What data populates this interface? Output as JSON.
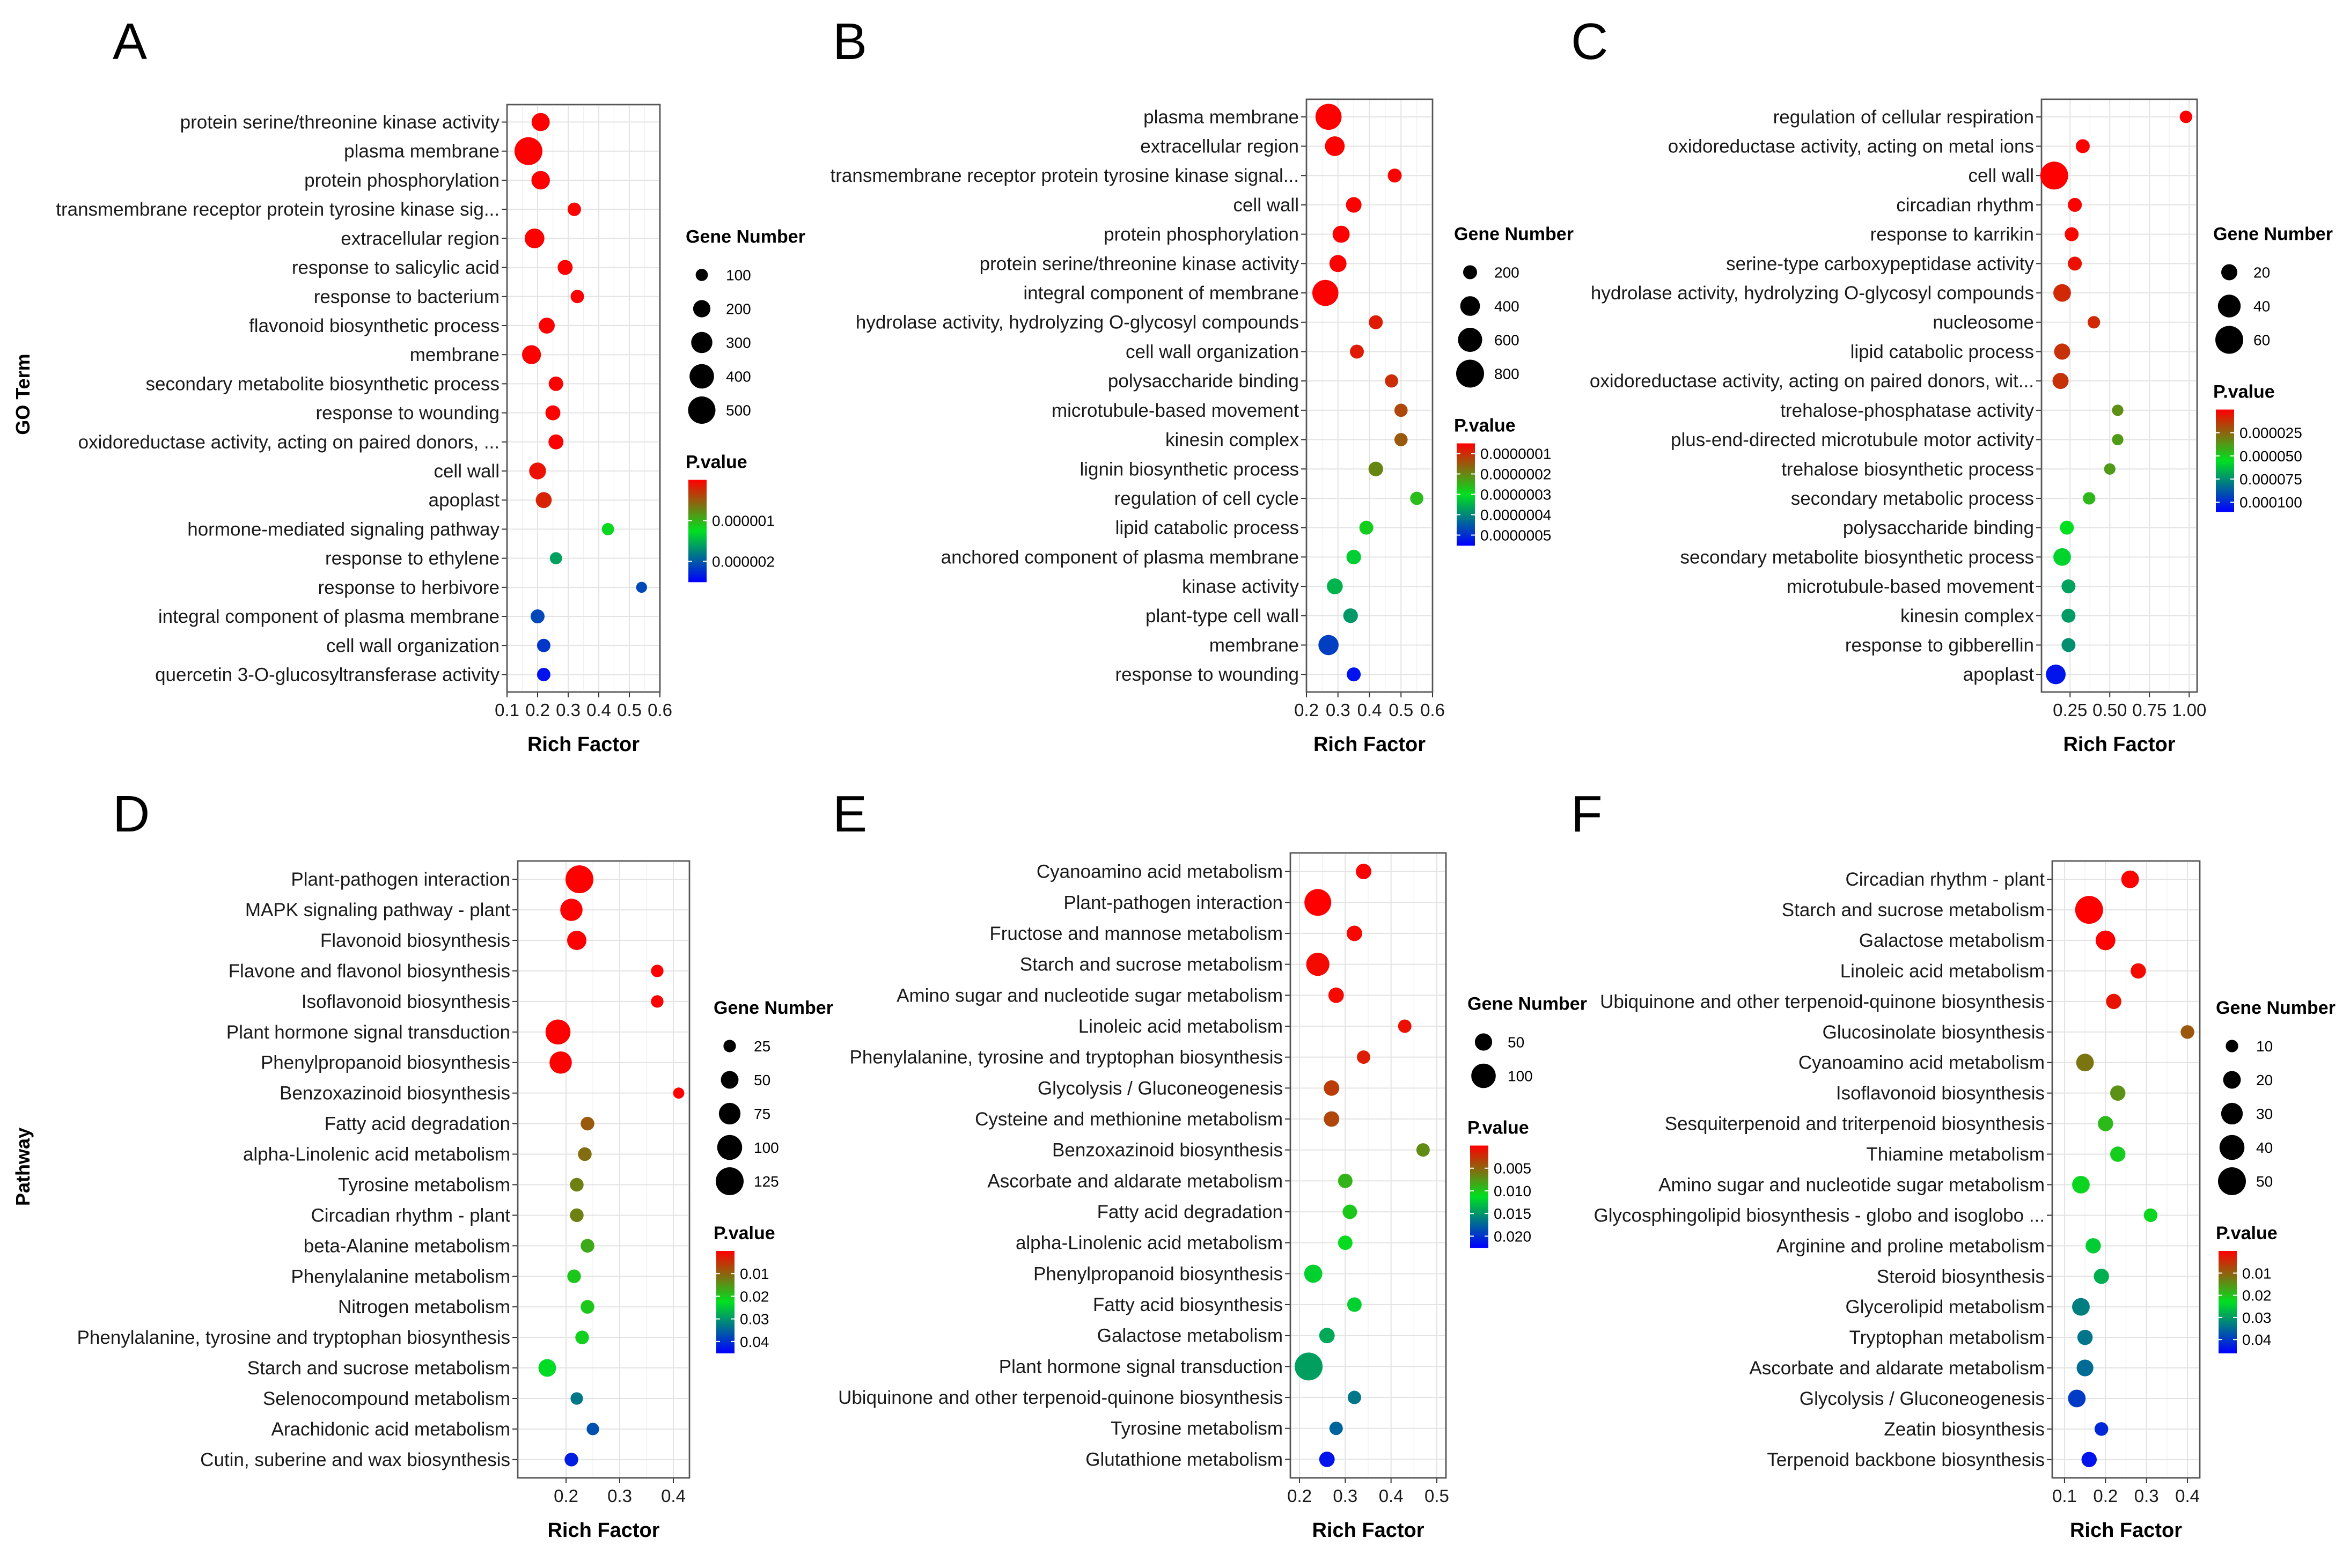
{
  "colors": {
    "pvalue_gradient": [
      "#FF0000",
      "#00E020",
      "#0000FF"
    ]
  },
  "chart_data": [
    {
      "panel": "A",
      "type": "scatter",
      "row_label": "GO Term",
      "xlabel": "Rich Factor",
      "xlim": [
        0.1,
        0.6
      ],
      "xticks": [
        0.1,
        0.2,
        0.3,
        0.4,
        0.5,
        0.6
      ],
      "size_legend": {
        "title": "Gene Number",
        "values": [
          100,
          200,
          300,
          400,
          500
        ]
      },
      "color_legend": {
        "title": "P.value",
        "labels": [
          "0.000001",
          "0.000002"
        ],
        "ticks": [
          1e-06,
          2e-06
        ],
        "range": [
          0,
          2.5e-06
        ]
      },
      "terms": [
        "protein serine/threonine kinase activity",
        "plasma membrane",
        "protein phosphorylation",
        "transmembrane receptor protein tyrosine kinase sig...",
        "extracellular region",
        "response to salicylic acid",
        "response to bacterium",
        "flavonoid biosynthetic process",
        "membrane",
        "secondary metabolite biosynthetic process",
        "response to wounding",
        "oxidoreductase activity, acting on paired donors, ...",
        "cell wall",
        "apoplast",
        "hormone-mediated signaling pathway",
        "response to ethylene",
        "response to herbivore",
        "integral component of plasma membrane",
        "cell wall organization",
        "quercetin 3-O-glucosyltransferase activity"
      ],
      "rich_factor": [
        0.21,
        0.17,
        0.21,
        0.32,
        0.19,
        0.29,
        0.33,
        0.23,
        0.18,
        0.26,
        0.25,
        0.26,
        0.2,
        0.22,
        0.43,
        0.26,
        0.54,
        0.2,
        0.22,
        0.22
      ],
      "gene_number": [
        220,
        520,
        230,
        120,
        260,
        150,
        120,
        170,
        240,
        140,
        150,
        150,
        190,
        170,
        100,
        100,
        80,
        130,
        120,
        120
      ],
      "p_value": [
        0.0,
        0.0,
        0.0,
        0.0,
        0.0,
        0.0,
        0.0,
        0.0,
        0.0,
        0.0,
        0.0,
        0.0,
        1e-07,
        2e-07,
        1.2e-06,
        1.6e-06,
        2.1e-06,
        2.1e-06,
        2.2e-06,
        2.4e-06
      ]
    },
    {
      "panel": "B",
      "type": "scatter",
      "row_label": "",
      "xlabel": "Rich Factor",
      "xlim": [
        0.2,
        0.6
      ],
      "xticks": [
        0.2,
        0.3,
        0.4,
        0.5,
        0.6
      ],
      "size_legend": {
        "title": "Gene Number",
        "values": [
          200,
          400,
          600,
          800
        ]
      },
      "color_legend": {
        "title": "P.value",
        "labels": [
          "0.0000001",
          "0.0000002",
          "0.0000003",
          "0.0000004",
          "0.0000005"
        ],
        "ticks": [
          1e-07,
          2e-07,
          3e-07,
          4e-07,
          5e-07
        ],
        "range": [
          5e-08,
          5.5e-07
        ]
      },
      "terms": [
        "plasma membrane",
        "extracellular region",
        "transmembrane receptor protein tyrosine kinase signal...",
        "cell wall",
        "protein phosphorylation",
        "protein serine/threonine kinase activity",
        "integral component of membrane",
        "hydrolase activity, hydrolyzing O-glycosyl compounds",
        "cell wall organization",
        "polysaccharide binding",
        "microtubule-based movement",
        "kinesin complex",
        "lignin biosynthetic process",
        "regulation of cell cycle",
        "lipid catabolic process",
        "anchored component of plasma membrane",
        "kinase activity",
        "plant-type cell wall",
        "membrane",
        "response to wounding"
      ],
      "rich_factor": [
        0.27,
        0.29,
        0.48,
        0.35,
        0.31,
        0.3,
        0.26,
        0.42,
        0.36,
        0.47,
        0.5,
        0.5,
        0.42,
        0.55,
        0.39,
        0.35,
        0.29,
        0.34,
        0.27,
        0.35
      ],
      "gene_number": [
        700,
        400,
        200,
        250,
        300,
        300,
        700,
        200,
        200,
        180,
        180,
        180,
        220,
        180,
        200,
        220,
        260,
        220,
        420,
        200
      ],
      "p_value": [
        5e-08,
        5e-08,
        5e-08,
        5e-08,
        5e-08,
        5e-08,
        5e-08,
        8e-08,
        8e-08,
        1e-07,
        1.3e-07,
        1.5e-07,
        2e-07,
        2.6e-07,
        2.8e-07,
        3.2e-07,
        3.5e-07,
        3.8e-07,
        4.8e-07,
        5.3e-07
      ]
    },
    {
      "panel": "C",
      "type": "scatter",
      "row_label": "",
      "xlabel": "Rich Factor",
      "xlim": [
        0.07,
        1.05
      ],
      "xticks": [
        0.25,
        0.5,
        0.75,
        1.0
      ],
      "xtick_labels": [
        "0.25",
        "0.50",
        "0.75",
        "1.00"
      ],
      "size_legend": {
        "title": "Gene Number",
        "values": [
          20,
          40,
          60
        ]
      },
      "color_legend": {
        "title": "P.value",
        "labels": [
          "0.000025",
          "0.000050",
          "0.000075",
          "0.000100"
        ],
        "ticks": [
          2.5e-05,
          5e-05,
          7.5e-05,
          0.0001
        ],
        "range": [
          0,
          0.00011
        ]
      },
      "terms": [
        "regulation of cellular respiration",
        "oxidoreductase activity, acting on metal ions",
        "cell wall",
        "circadian rhythm",
        "response to karrikin",
        "serine-type carboxypeptidase activity",
        "hydrolase activity, hydrolyzing O-glycosyl compounds",
        "nucleosome",
        "lipid catabolic process",
        "oxidoreductase activity, acting on paired donors, wit...",
        "trehalose-phosphatase activity",
        "plus-end-directed microtubule motor activity",
        "trehalose biosynthetic process",
        "secondary metabolic process",
        "polysaccharide binding",
        "secondary metabolite biosynthetic process",
        "microtubule-based movement",
        "kinesin complex",
        "response to gibberellin",
        "apoplast"
      ],
      "rich_factor": [
        0.98,
        0.33,
        0.15,
        0.28,
        0.26,
        0.28,
        0.2,
        0.4,
        0.2,
        0.19,
        0.55,
        0.55,
        0.5,
        0.37,
        0.23,
        0.2,
        0.24,
        0.24,
        0.24,
        0.16
      ],
      "gene_number": [
        12,
        15,
        60,
        15,
        15,
        15,
        24,
        12,
        20,
        20,
        10,
        10,
        10,
        12,
        15,
        24,
        15,
        15,
        15,
        30
      ],
      "p_value": [
        0.0,
        0.0,
        0.0,
        0.0,
        2e-06,
        4e-06,
        1e-05,
        1e-05,
        1.2e-05,
        1.2e-05,
        3.5e-05,
        3.8e-05,
        3.8e-05,
        4.5e-05,
        5.5e-05,
        5.8e-05,
        7e-05,
        7.2e-05,
        7.5e-05,
        0.000105
      ]
    },
    {
      "panel": "D",
      "type": "scatter",
      "row_label": "Pathway",
      "xlabel": "Rich Factor",
      "xlim": [
        0.11,
        0.43
      ],
      "xticks": [
        0.2,
        0.3,
        0.4
      ],
      "size_legend": {
        "title": "Gene Number",
        "values": [
          25,
          50,
          75,
          100,
          125
        ]
      },
      "color_legend": {
        "title": "P.value",
        "labels": [
          "0.01",
          "0.02",
          "0.03",
          "0.04"
        ],
        "ticks": [
          0.01,
          0.02,
          0.03,
          0.04
        ],
        "range": [
          0,
          0.045
        ]
      },
      "terms": [
        "Plant-pathogen interaction",
        "MAPK signaling pathway - plant",
        "Flavonoid biosynthesis",
        "Flavone and flavonol biosynthesis",
        "Isoflavonoid biosynthesis",
        "Plant hormone signal transduction",
        "Phenylpropanoid biosynthesis",
        "Benzoxazinoid biosynthesis",
        "Fatty acid degradation",
        "alpha-Linolenic acid metabolism",
        "Tyrosine metabolism",
        "Circadian rhythm - plant",
        "beta-Alanine metabolism",
        "Phenylalanine metabolism",
        "Nitrogen metabolism",
        "Phenylalanine, tyrosine and tryptophan biosynthesis",
        "Starch and sucrose metabolism",
        "Selenocompound metabolism",
        "Arachidonic acid metabolism",
        "Cutin, suberine and wax biosynthesis"
      ],
      "rich_factor": [
        0.225,
        0.21,
        0.22,
        0.37,
        0.37,
        0.185,
        0.19,
        0.41,
        0.24,
        0.235,
        0.22,
        0.22,
        0.24,
        0.215,
        0.24,
        0.23,
        0.165,
        0.22,
        0.25,
        0.21
      ],
      "gene_number": [
        125,
        80,
        60,
        25,
        25,
        100,
        80,
        20,
        30,
        30,
        30,
        30,
        30,
        30,
        30,
        30,
        50,
        25,
        25,
        30
      ],
      "p_value": [
        0.0,
        0.0,
        0.0,
        0.0,
        0.0,
        0.0,
        0.0,
        0.0,
        0.009,
        0.011,
        0.013,
        0.013,
        0.017,
        0.02,
        0.02,
        0.021,
        0.023,
        0.033,
        0.037,
        0.042
      ]
    },
    {
      "panel": "E",
      "type": "scatter",
      "row_label": "",
      "xlabel": "Rich Factor",
      "xlim": [
        0.18,
        0.52
      ],
      "xticks": [
        0.2,
        0.3,
        0.4,
        0.5
      ],
      "size_legend": {
        "title": "Gene Number",
        "values": [
          50,
          100
        ]
      },
      "color_legend": {
        "title": "P.value",
        "labels": [
          "0.005",
          "0.010",
          "0.015",
          "0.020"
        ],
        "ticks": [
          0.005,
          0.01,
          0.015,
          0.02
        ],
        "range": [
          0,
          0.0225
        ]
      },
      "terms": [
        "Cyanoamino acid metabolism",
        "Plant-pathogen interaction",
        "Fructose and mannose metabolism",
        "Starch and sucrose metabolism",
        "Amino sugar and nucleotide sugar metabolism",
        "Linoleic acid metabolism",
        "Phenylalanine, tyrosine and tryptophan biosynthesis",
        "Glycolysis / Gluconeogenesis",
        "Cysteine and methionine metabolism",
        "Benzoxazinoid biosynthesis",
        "Ascorbate and aldarate metabolism",
        "Fatty acid degradation",
        "alpha-Linolenic acid metabolism",
        "Phenylpropanoid biosynthesis",
        "Fatty acid biosynthesis",
        "Galactose metabolism",
        "Plant hormone signal transduction",
        "Ubiquinone and other terpenoid-quinone biosynthesis",
        "Tyrosine metabolism",
        "Glutathione metabolism"
      ],
      "rich_factor": [
        0.34,
        0.24,
        0.32,
        0.24,
        0.28,
        0.43,
        0.34,
        0.27,
        0.27,
        0.47,
        0.3,
        0.31,
        0.3,
        0.23,
        0.32,
        0.26,
        0.22,
        0.32,
        0.28,
        0.26
      ],
      "gene_number": [
        40,
        120,
        40,
        90,
        40,
        30,
        30,
        40,
        40,
        30,
        35,
        35,
        35,
        55,
        35,
        40,
        130,
        30,
        30,
        40
      ],
      "p_value": [
        0.0,
        0.0,
        0.0003,
        0.0005,
        0.0005,
        0.0008,
        0.0015,
        0.003,
        0.0035,
        0.007,
        0.009,
        0.01,
        0.011,
        0.012,
        0.012,
        0.014,
        0.0145,
        0.0165,
        0.0175,
        0.0215
      ]
    },
    {
      "panel": "F",
      "type": "scatter",
      "row_label": "",
      "xlabel": "Rich Factor",
      "xlim": [
        0.07,
        0.43
      ],
      "xticks": [
        0.1,
        0.2,
        0.3,
        0.4
      ],
      "size_legend": {
        "title": "Gene Number",
        "values": [
          10,
          20,
          30,
          40,
          50
        ]
      },
      "color_legend": {
        "title": "P.value",
        "labels": [
          "0.01",
          "0.02",
          "0.03",
          "0.04"
        ],
        "ticks": [
          0.01,
          0.02,
          0.03,
          0.04
        ],
        "range": [
          0,
          0.046
        ]
      },
      "terms": [
        "Circadian rhythm - plant",
        "Starch and sucrose metabolism",
        "Galactose metabolism",
        "Linoleic acid metabolism",
        "Ubiquinone and other terpenoid-quinone biosynthesis",
        "Glucosinolate biosynthesis",
        "Cyanoamino acid metabolism",
        "Isoflavonoid biosynthesis",
        "Sesquiterpenoid and triterpenoid biosynthesis",
        "Thiamine metabolism",
        "Amino sugar and nucleotide sugar metabolism",
        "Glycosphingolipid biosynthesis - globo and isoglobo ...",
        "Arginine and proline metabolism",
        "Steroid biosynthesis",
        "Glycerolipid metabolism",
        "Tryptophan metabolism",
        "Ascorbate and aldarate metabolism",
        "Glycolysis / Gluconeogenesis",
        "Zeatin biosynthesis",
        "Terpenoid backbone biosynthesis"
      ],
      "rich_factor": [
        0.26,
        0.16,
        0.2,
        0.28,
        0.22,
        0.4,
        0.15,
        0.23,
        0.2,
        0.23,
        0.14,
        0.31,
        0.17,
        0.19,
        0.14,
        0.15,
        0.15,
        0.13,
        0.19,
        0.16
      ],
      "gene_number": [
        20,
        50,
        25,
        15,
        15,
        12,
        20,
        15,
        15,
        15,
        20,
        12,
        15,
        15,
        20,
        15,
        18,
        20,
        12,
        15
      ],
      "p_value": [
        0.0,
        0.0,
        0.0,
        0.001,
        0.002,
        0.009,
        0.012,
        0.015,
        0.019,
        0.021,
        0.022,
        0.022,
        0.025,
        0.028,
        0.033,
        0.034,
        0.035,
        0.04,
        0.042,
        0.044
      ]
    }
  ]
}
